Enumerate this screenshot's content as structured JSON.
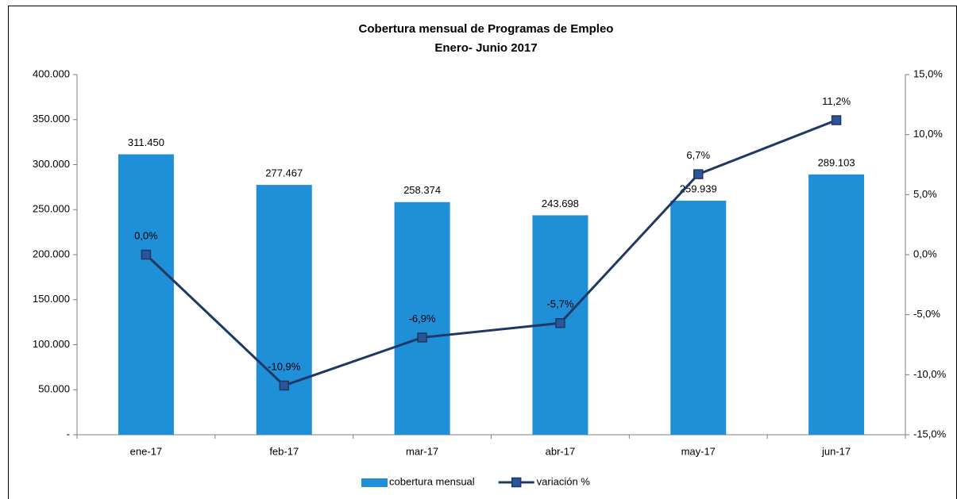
{
  "chart_data": {
    "type": "bar",
    "title": "Cobertura mensual de Programas de Empleo",
    "subtitle": "Enero- Junio 2017",
    "categories": [
      "ene-17",
      "feb-17",
      "mar-17",
      "abr-17",
      "may-17",
      "jun-17"
    ],
    "series": [
      {
        "name": "cobertura mensual",
        "type": "bar",
        "color": "#1f8fd8",
        "values": [
          311450,
          277467,
          258374,
          243698,
          259939,
          289103
        ],
        "value_labels": [
          "311.450",
          "277.467",
          "258.374",
          "243.698",
          "259.939",
          "289.103"
        ]
      },
      {
        "name": "variación %",
        "type": "line",
        "axis": "y2",
        "color": "#1f3864",
        "marker_color": "#2a5599",
        "values": [
          0.0,
          -10.9,
          -6.9,
          -5.7,
          6.7,
          11.2
        ],
        "value_labels": [
          "0,0%",
          "-10,9%",
          "-6,9%",
          "-5,7%",
          "6,7%",
          "11,2%"
        ]
      }
    ],
    "ylim": [
      0,
      400000
    ],
    "yticks": [
      {
        "value": 0,
        "label": "-"
      },
      {
        "value": 50000,
        "label": "50.000"
      },
      {
        "value": 100000,
        "label": "100.000"
      },
      {
        "value": 150000,
        "label": "150.000"
      },
      {
        "value": 200000,
        "label": "200.000"
      },
      {
        "value": 250000,
        "label": "250.000"
      },
      {
        "value": 300000,
        "label": "300.000"
      },
      {
        "value": 350000,
        "label": "350.000"
      },
      {
        "value": 400000,
        "label": "400.000"
      }
    ],
    "y2lim": [
      -15,
      15
    ],
    "y2ticks": [
      {
        "value": -15,
        "label": "-15,0%"
      },
      {
        "value": -10,
        "label": "-10,0%"
      },
      {
        "value": -5,
        "label": "-5,0%"
      },
      {
        "value": 0,
        "label": "0,0%"
      },
      {
        "value": 5,
        "label": "5,0%"
      },
      {
        "value": 10,
        "label": "10,0%"
      },
      {
        "value": 15,
        "label": "15,0%"
      }
    ],
    "grid": false,
    "legend": "bottom"
  }
}
